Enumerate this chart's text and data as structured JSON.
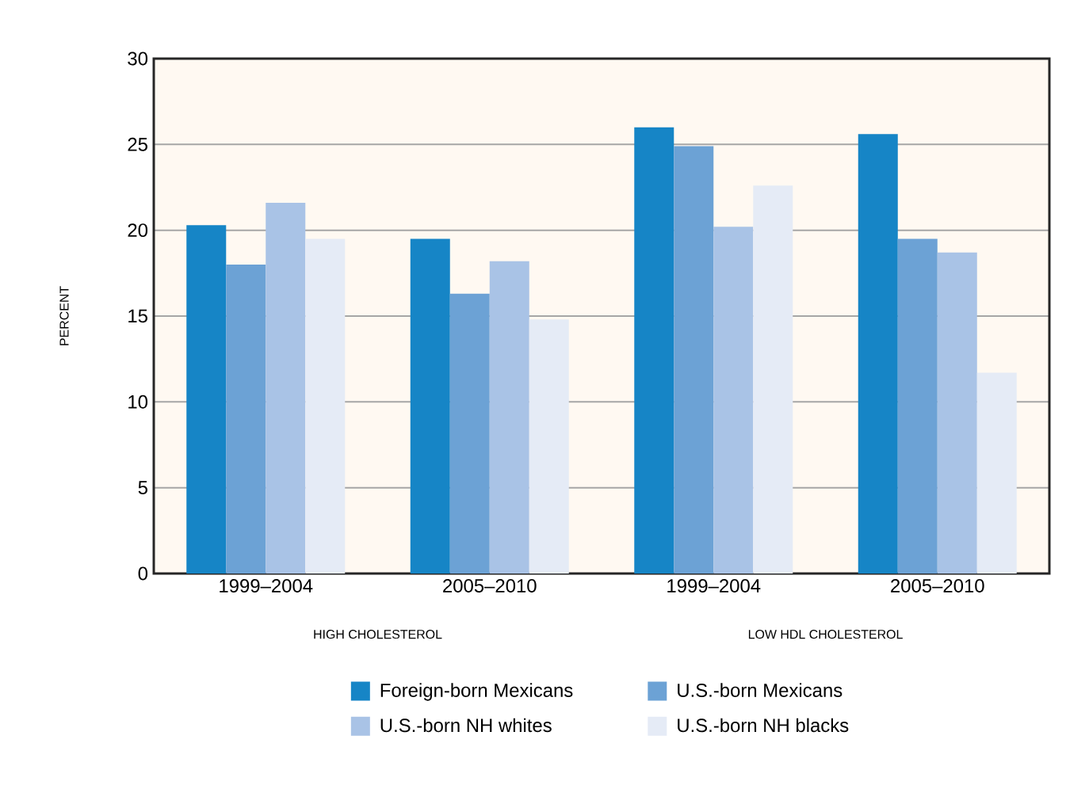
{
  "chart_data": {
    "type": "bar",
    "ylabel": "PERCENT",
    "categories": [
      "1999–2004",
      "2005–2010",
      "1999–2004",
      "2005–2010"
    ],
    "series": [
      {
        "name": "Foreign-born Mexicans",
        "color": "#1685c6",
        "values": [
          20.3,
          19.5,
          26.0,
          25.6
        ]
      },
      {
        "name": "U.S.-born Mexicans",
        "color": "#6ca2d5",
        "values": [
          18.0,
          16.3,
          24.9,
          19.5
        ]
      },
      {
        "name": "U.S.-born NH whites",
        "color": "#a9c3e6",
        "values": [
          21.6,
          18.2,
          20.2,
          18.7
        ]
      },
      {
        "name": "U.S.-born NH blacks",
        "color": "#e5ebf6",
        "values": [
          19.5,
          14.8,
          22.6,
          11.7
        ]
      }
    ],
    "annotations": [
      "HIGH CHOLESTEROL",
      "LOW HDL CHOLESTEROL"
    ],
    "ylim": [
      0,
      30
    ],
    "yticks": [
      0,
      5,
      10,
      15,
      20,
      25,
      30
    ],
    "grid": "y",
    "legend": "bottom"
  }
}
